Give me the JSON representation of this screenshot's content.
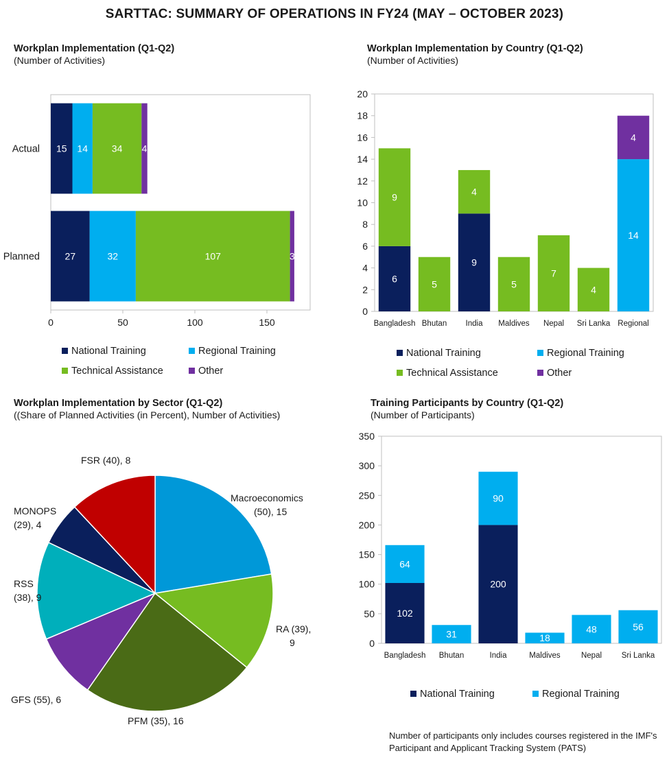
{
  "page_title": "SARTTAC: SUMMARY OF OPERATIONS IN FY24 (MAY – OCTOBER 2023)",
  "colors": {
    "national": "#0a1f5c",
    "regional": "#00aeef",
    "technical": "#76bc21",
    "other": "#7030a0"
  },
  "footnote": "Number of participants only includes courses registered in the IMF's Participant and Applicant Tracking System (PATS)",
  "chart_data": [
    {
      "type": "bar",
      "orientation": "horizontal",
      "stacked": true,
      "title": "Workplan Implementation (Q1-Q2)",
      "subtitle": "(Number of Activities)",
      "categories": [
        "Actual",
        "Planned"
      ],
      "series": [
        {
          "name": "National Training",
          "color": "#0a1f5c",
          "values": [
            15,
            27
          ]
        },
        {
          "name": "Regional Training",
          "color": "#00aeef",
          "values": [
            14,
            32
          ]
        },
        {
          "name": "Technical Assistance",
          "color": "#76bc21",
          "values": [
            34,
            107
          ]
        },
        {
          "name": "Other",
          "color": "#7030a0",
          "values": [
            4,
            3
          ]
        }
      ],
      "xlim": [
        0,
        180
      ],
      "xticks": [
        0,
        50,
        100,
        150
      ],
      "legend": "bottom"
    },
    {
      "type": "bar",
      "stacked": true,
      "title": "Workplan Implementation by Country (Q1-Q2)",
      "subtitle": "(Number of Activities)",
      "categories": [
        "Bangladesh",
        "Bhutan",
        "India",
        "Maldives",
        "Nepal",
        "Sri Lanka",
        "Regional"
      ],
      "series": [
        {
          "name": "National Training",
          "color": "#0a1f5c",
          "values": [
            6,
            0,
            9,
            0,
            0,
            0,
            0
          ]
        },
        {
          "name": "Regional Training",
          "color": "#00aeef",
          "values": [
            0,
            0,
            0,
            0,
            0,
            0,
            14
          ]
        },
        {
          "name": "Technical Assistance",
          "color": "#76bc21",
          "values": [
            9,
            5,
            4,
            5,
            7,
            4,
            0
          ]
        },
        {
          "name": "Other",
          "color": "#7030a0",
          "values": [
            0,
            0,
            0,
            0,
            0,
            0,
            4
          ]
        }
      ],
      "ylim": [
        0,
        20
      ],
      "yticks": [
        0,
        2,
        4,
        6,
        8,
        10,
        12,
        14,
        16,
        18,
        20
      ],
      "legend": "bottom"
    },
    {
      "type": "pie",
      "title": "Workplan Implementation by Sector (Q1-Q2)",
      "subtitle": "((Share of Planned Activities (in Percent), Number of Activities)",
      "slices": [
        {
          "label": "Macroeconomics (50), 15",
          "value": 15,
          "color": "#0098d8"
        },
        {
          "label": "RA (39), 9",
          "value": 9,
          "color": "#76bc21"
        },
        {
          "label": "PFM (35), 16",
          "value": 16,
          "color": "#4a6b16"
        },
        {
          "label": "GFS (55), 6",
          "value": 6,
          "color": "#7030a0"
        },
        {
          "label": "RSS (38), 9",
          "value": 9,
          "color": "#00afbb"
        },
        {
          "label": "MONOPS (29), 4",
          "value": 4,
          "color": "#0a1f5c"
        },
        {
          "label": "FSR (40), 8",
          "value": 8,
          "color": "#c00000"
        }
      ]
    },
    {
      "type": "bar",
      "stacked": true,
      "title": "Training Participants by Country (Q1-Q2)",
      "subtitle": "(Number of Participants)",
      "categories": [
        "Bangladesh",
        "Bhutan",
        "India",
        "Maldives",
        "Nepal",
        "Sri Lanka"
      ],
      "series": [
        {
          "name": "National Training",
          "color": "#0a1f5c",
          "values": [
            102,
            0,
            200,
            0,
            0,
            0
          ]
        },
        {
          "name": "Regional Training",
          "color": "#00aeef",
          "values": [
            64,
            31,
            90,
            18,
            48,
            56
          ]
        }
      ],
      "ylim": [
        0,
        350
      ],
      "yticks": [
        0,
        50,
        100,
        150,
        200,
        250,
        300,
        350
      ],
      "legend": "bottom"
    }
  ]
}
